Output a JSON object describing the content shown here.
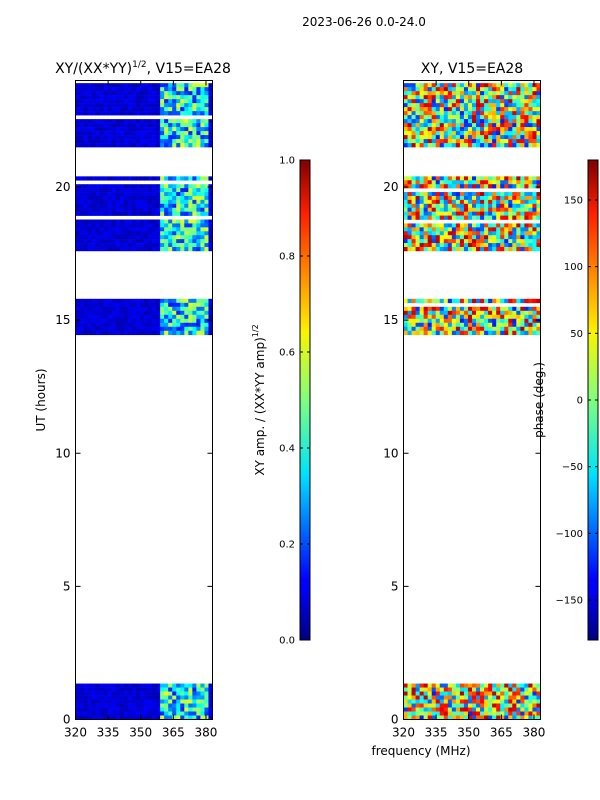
{
  "figure_title": "2023-06-26 0.0-24.0",
  "shared_xlabel": "frequency (MHz)",
  "chart_data": [
    {
      "type": "heatmap",
      "title_main": "XY/(XX*YY)",
      "title_sup": "1/2",
      "title_rest": ", V15=EA28",
      "xlabel": "",
      "ylabel": "UT (hours)",
      "xlim": [
        320,
        383
      ],
      "ylim": [
        0,
        24
      ],
      "xticks": [
        "320",
        "335",
        "350",
        "365",
        "380"
      ],
      "xtick_values": [
        320,
        335,
        350,
        365,
        380
      ],
      "yticks": [
        "0",
        "5",
        "10",
        "15",
        "20"
      ],
      "ytick_values": [
        0,
        5,
        10,
        15,
        20
      ],
      "data_time_ranges": [
        [
          0,
          1.35
        ],
        [
          14.45,
          15.8
        ],
        [
          17.6,
          20.4
        ],
        [
          21.5,
          23.9
        ]
      ],
      "colorbar": {
        "label_main": "XY amp. / (XX*YY amp)",
        "label_sup": "1/2",
        "range": [
          0.0,
          1.0
        ],
        "ticks": [
          "0.0",
          "0.2",
          "0.4",
          "0.6",
          "0.8",
          "1.0"
        ],
        "tick_values": [
          0.0,
          0.2,
          0.4,
          0.6,
          0.8,
          1.0
        ]
      }
    },
    {
      "type": "heatmap",
      "title_main": "XY, V15=EA28",
      "title_sup": "",
      "title_rest": "",
      "xlabel": "",
      "ylabel": "",
      "xlim": [
        320,
        383
      ],
      "ylim": [
        0,
        24
      ],
      "xticks": [
        "320",
        "335",
        "350",
        "365",
        "380"
      ],
      "xtick_values": [
        320,
        335,
        350,
        365,
        380
      ],
      "yticks": [
        "0",
        "5",
        "10",
        "15",
        "20"
      ],
      "ytick_values": [
        0,
        5,
        10,
        15,
        20
      ],
      "data_time_ranges": [
        [
          0,
          1.35
        ],
        [
          14.45,
          15.8
        ],
        [
          17.6,
          20.4
        ],
        [
          21.5,
          23.9
        ]
      ],
      "colorbar": {
        "label_main": "phase (deg.)",
        "label_sup": "",
        "range": [
          -180,
          180
        ],
        "ticks": [
          "−150",
          "−100",
          "−50",
          "0",
          "50",
          "100",
          "150"
        ],
        "tick_values": [
          -150,
          -100,
          -50,
          0,
          50,
          100,
          150
        ]
      }
    }
  ]
}
